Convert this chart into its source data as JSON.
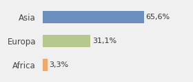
{
  "categories": [
    "Asia",
    "Europa",
    "Africa"
  ],
  "values": [
    65.6,
    31.1,
    3.3
  ],
  "labels": [
    "65,6%",
    "31,1%",
    "3,3%"
  ],
  "bar_colors": [
    "#6b8fbf",
    "#b5c98e",
    "#f0a868"
  ],
  "background_color": "#f0f0f0",
  "xlim": [
    0,
    95
  ],
  "label_fontsize": 8,
  "tick_fontsize": 8.5,
  "bar_height": 0.5
}
